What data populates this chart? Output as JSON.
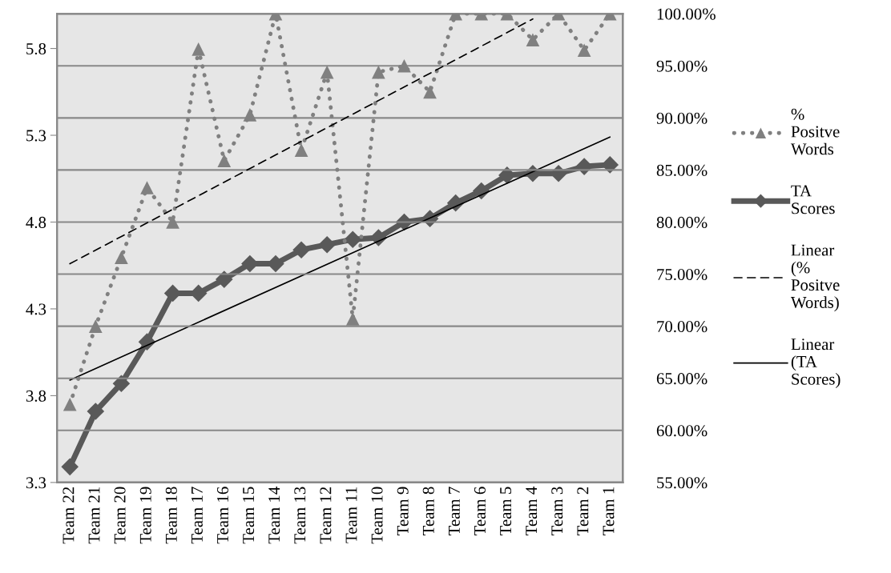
{
  "chart_data": {
    "type": "line",
    "categories": [
      "Team 22",
      "Team 21",
      "Team 20",
      "Team 19",
      "Team 18",
      "Team 17",
      "Team 16",
      "Team 15",
      "Team 14",
      "Team 13",
      "Team 12",
      "Team 11",
      "Team 10",
      "Team 9",
      "Team 8",
      "Team 7",
      "Team 6",
      "Team 5",
      "Team 4",
      "Team 3",
      "Team 2",
      "Team 1"
    ],
    "series": [
      {
        "name": "% Positve Words",
        "axis": "y2",
        "color": "#808080",
        "marker": "triangle",
        "line_style": "dotted",
        "values": [
          62.5,
          70.0,
          76.6,
          83.3,
          80.0,
          96.6,
          85.9,
          90.3,
          100,
          86.9,
          94.4,
          70.7,
          94.4,
          95.0,
          92.5,
          100,
          100,
          100,
          97.5,
          100,
          96.5,
          100
        ]
      },
      {
        "name": "TA Scores",
        "axis": "y",
        "color": "#595959",
        "marker": "diamond",
        "line_style": "solid",
        "values": [
          3.39,
          3.71,
          3.87,
          4.11,
          4.39,
          4.39,
          4.47,
          4.56,
          4.56,
          4.64,
          4.67,
          4.7,
          4.71,
          4.8,
          4.82,
          4.91,
          4.98,
          5.07,
          5.08,
          5.08,
          5.12,
          5.13
        ]
      },
      {
        "name": "Linear (% Positve Words)",
        "axis": "y2",
        "color": "#000000",
        "marker": "none",
        "line_style": "dashed",
        "x": [
          "Team 22",
          "Team 4"
        ],
        "values": [
          76.0,
          99.5
        ]
      },
      {
        "name": "Linear (TA Scores)",
        "axis": "y",
        "color": "#000000",
        "marker": "none",
        "line_style": "solid",
        "x": [
          "Team 22",
          "Team 1"
        ],
        "values": [
          3.89,
          5.29
        ]
      }
    ],
    "ylim": [
      3.3,
      6.0
    ],
    "yticks": [
      3.3,
      3.8,
      4.3,
      4.8,
      5.3,
      5.8
    ],
    "y2lim": [
      55,
      100
    ],
    "y2ticks": [
      {
        "value": 55,
        "label": "55.00%"
      },
      {
        "value": 60,
        "label": "60.00%"
      },
      {
        "value": 65,
        "label": "65.00%"
      },
      {
        "value": 70,
        "label": "70.00%"
      },
      {
        "value": 75,
        "label": "75.00%"
      },
      {
        "value": 80,
        "label": "80.00%"
      },
      {
        "value": 85,
        "label": "85.00%"
      },
      {
        "value": 90,
        "label": "90.00%"
      },
      {
        "value": 95,
        "label": "95.00%"
      },
      {
        "value": 100,
        "label": "100.00%"
      }
    ],
    "grid": "y2",
    "legend": "right"
  }
}
